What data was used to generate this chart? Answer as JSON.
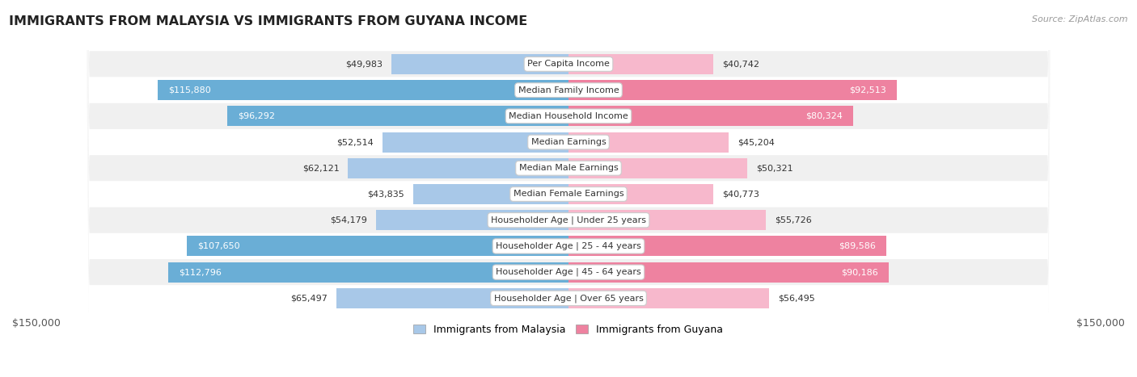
{
  "title": "IMMIGRANTS FROM MALAYSIA VS IMMIGRANTS FROM GUYANA INCOME",
  "source": "Source: ZipAtlas.com",
  "categories": [
    "Per Capita Income",
    "Median Family Income",
    "Median Household Income",
    "Median Earnings",
    "Median Male Earnings",
    "Median Female Earnings",
    "Householder Age | Under 25 years",
    "Householder Age | 25 - 44 years",
    "Householder Age | 45 - 64 years",
    "Householder Age | Over 65 years"
  ],
  "malaysia_values": [
    49983,
    115880,
    96292,
    52514,
    62121,
    43835,
    54179,
    107650,
    112796,
    65497
  ],
  "guyana_values": [
    40742,
    92513,
    80324,
    45204,
    50321,
    40773,
    55726,
    89586,
    90186,
    56495
  ],
  "malaysia_labels": [
    "$49,983",
    "$115,880",
    "$96,292",
    "$52,514",
    "$62,121",
    "$43,835",
    "$54,179",
    "$107,650",
    "$112,796",
    "$65,497"
  ],
  "guyana_labels": [
    "$40,742",
    "$92,513",
    "$80,324",
    "$45,204",
    "$50,321",
    "$40,773",
    "$55,726",
    "$89,586",
    "$90,186",
    "$56,495"
  ],
  "malaysia_color_light": "#a8c8e8",
  "malaysia_color_solid": "#6aaed6",
  "guyana_color_light": "#f7b8cc",
  "guyana_color_solid": "#ee82a0",
  "malaysia_text_threshold": 70000,
  "guyana_text_threshold": 70000,
  "max_value": 150000,
  "bar_height": 0.78,
  "background_color": "#ffffff",
  "row_bg_odd": "#f0f0f0",
  "row_bg_even": "#ffffff",
  "legend_malaysia": "Immigrants from Malaysia",
  "legend_guyana": "Immigrants from Guyana"
}
